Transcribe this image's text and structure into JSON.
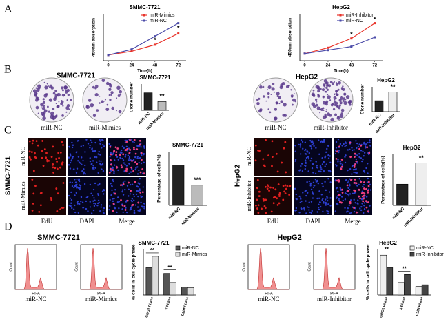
{
  "panel_letters": [
    "A",
    "B",
    "C",
    "D"
  ],
  "colony": {
    "titles": [
      "SMMC-7721",
      "HepG2"
    ],
    "labels": [
      "miR-NC",
      "miR-Mimics",
      "miR-NC",
      "miR-Inhibitor"
    ]
  },
  "edu": {
    "cell_lines": [
      "SMMC-7721",
      "HepG2"
    ],
    "row_labels": [
      "miR-NC",
      "miR-Mimics",
      "miR-NC",
      "miR-Inhibitor"
    ],
    "columns": [
      "EdU",
      "DAPI",
      "Merge"
    ]
  },
  "flow": {
    "titles": [
      "SMMC-7721",
      "HepG2"
    ],
    "x_label": "PI-A",
    "y_label": "Count",
    "labels": [
      "miR-NC",
      "miR-Mimics",
      "miR-NC",
      "miR-Inhibitor"
    ]
  },
  "chart_data": [
    {
      "type": "line",
      "title": "SMMC-7721",
      "x_label": "Time(h)",
      "y_label": "450nm absorption",
      "x": [
        0,
        24,
        48,
        72
      ],
      "xlim": [
        -5,
        80
      ],
      "xticks": [
        0,
        24,
        48,
        72
      ],
      "ylim": [
        0,
        2.5
      ],
      "series": [
        {
          "name": "miR-Mimics",
          "color": "#e8332a",
          "values": [
            0.3,
            0.5,
            0.85,
            1.45
          ]
        },
        {
          "name": "miR-NC",
          "color": "#4a4aa8",
          "values": [
            0.3,
            0.6,
            1.3,
            2.0
          ]
        }
      ],
      "annotations": [
        "*",
        "*"
      ]
    },
    {
      "type": "line",
      "title": "HepG2",
      "x_label": "Time(h)",
      "y_label": "450nm absorption",
      "x": [
        0,
        24,
        48,
        72
      ],
      "xlim": [
        -5,
        80
      ],
      "xticks": [
        0,
        24,
        48,
        72
      ],
      "ylim": [
        0,
        2
      ],
      "series": [
        {
          "name": "miR-Inhibitor",
          "color": "#e8332a",
          "values": [
            0.3,
            0.55,
            0.95,
            1.6
          ]
        },
        {
          "name": "miR-NC",
          "color": "#4a4aa8",
          "values": [
            0.3,
            0.45,
            0.6,
            1.0
          ]
        }
      ],
      "annotations": [
        "*",
        "*"
      ]
    },
    {
      "type": "bar",
      "title": "SMMC-7721",
      "y_label": "Clone number",
      "categories": [
        "miR-NC",
        "miR-Mimics"
      ],
      "values": [
        100,
        50
      ],
      "colors": [
        "#222222",
        "#bbbbbb"
      ],
      "ylim": [
        0,
        150
      ],
      "annotations": [
        "**"
      ]
    },
    {
      "type": "bar",
      "title": "HepG2",
      "y_label": "Clone number",
      "categories": [
        "miR-NC",
        "miR-Inhibitor"
      ],
      "values": [
        75,
        135
      ],
      "colors": [
        "#222222",
        "#eeeeee"
      ],
      "ylim": [
        0,
        170
      ],
      "annotations": [
        "**"
      ]
    },
    {
      "type": "bar",
      "title": "SMMC-7721",
      "y_label": "Percentage of cells(%)",
      "categories": [
        "miR-NC",
        "miR-Mimics"
      ],
      "values": [
        60,
        30
      ],
      "colors": [
        "#222222",
        "#bbbbbb"
      ],
      "ylim": [
        0,
        80
      ],
      "annotations": [
        "***"
      ]
    },
    {
      "type": "bar",
      "title": "HepG2",
      "y_label": "Percentage of cells(%)",
      "categories": [
        "miR-NC",
        "miR-Inhibitor"
      ],
      "values": [
        27,
        54
      ],
      "colors": [
        "#222222",
        "#eeeeee"
      ],
      "ylim": [
        0,
        65
      ],
      "annotations": [
        "**"
      ]
    },
    {
      "type": "bar",
      "title": "SMMC-7721",
      "y_label": "% cells in cell cycle phase",
      "categories": [
        "G0/G1 Phase",
        "S Phase",
        "G2/M Phase"
      ],
      "series": [
        {
          "name": "miR-NC",
          "color": "#555555",
          "values": [
            48,
            38,
            14
          ]
        },
        {
          "name": "miR-Mimics",
          "color": "#dddddd",
          "values": [
            68,
            22,
            13
          ]
        }
      ],
      "ylim": [
        0,
        80
      ],
      "annotations": [
        "**",
        "**"
      ]
    },
    {
      "type": "bar",
      "title": "HepG2",
      "y_label": "% cells in cell cycle phase",
      "categories": [
        "G0/G1 Phase",
        "S Phase",
        "G2/M Phase"
      ],
      "series": [
        {
          "name": "miR-NC",
          "color": "#eeeeee",
          "values": [
            70,
            22,
            15
          ]
        },
        {
          "name": "miR-Inhibitor",
          "color": "#444444",
          "values": [
            48,
            36,
            18
          ]
        }
      ],
      "ylim": [
        0,
        80
      ],
      "annotations": [
        "**",
        "**"
      ]
    }
  ]
}
